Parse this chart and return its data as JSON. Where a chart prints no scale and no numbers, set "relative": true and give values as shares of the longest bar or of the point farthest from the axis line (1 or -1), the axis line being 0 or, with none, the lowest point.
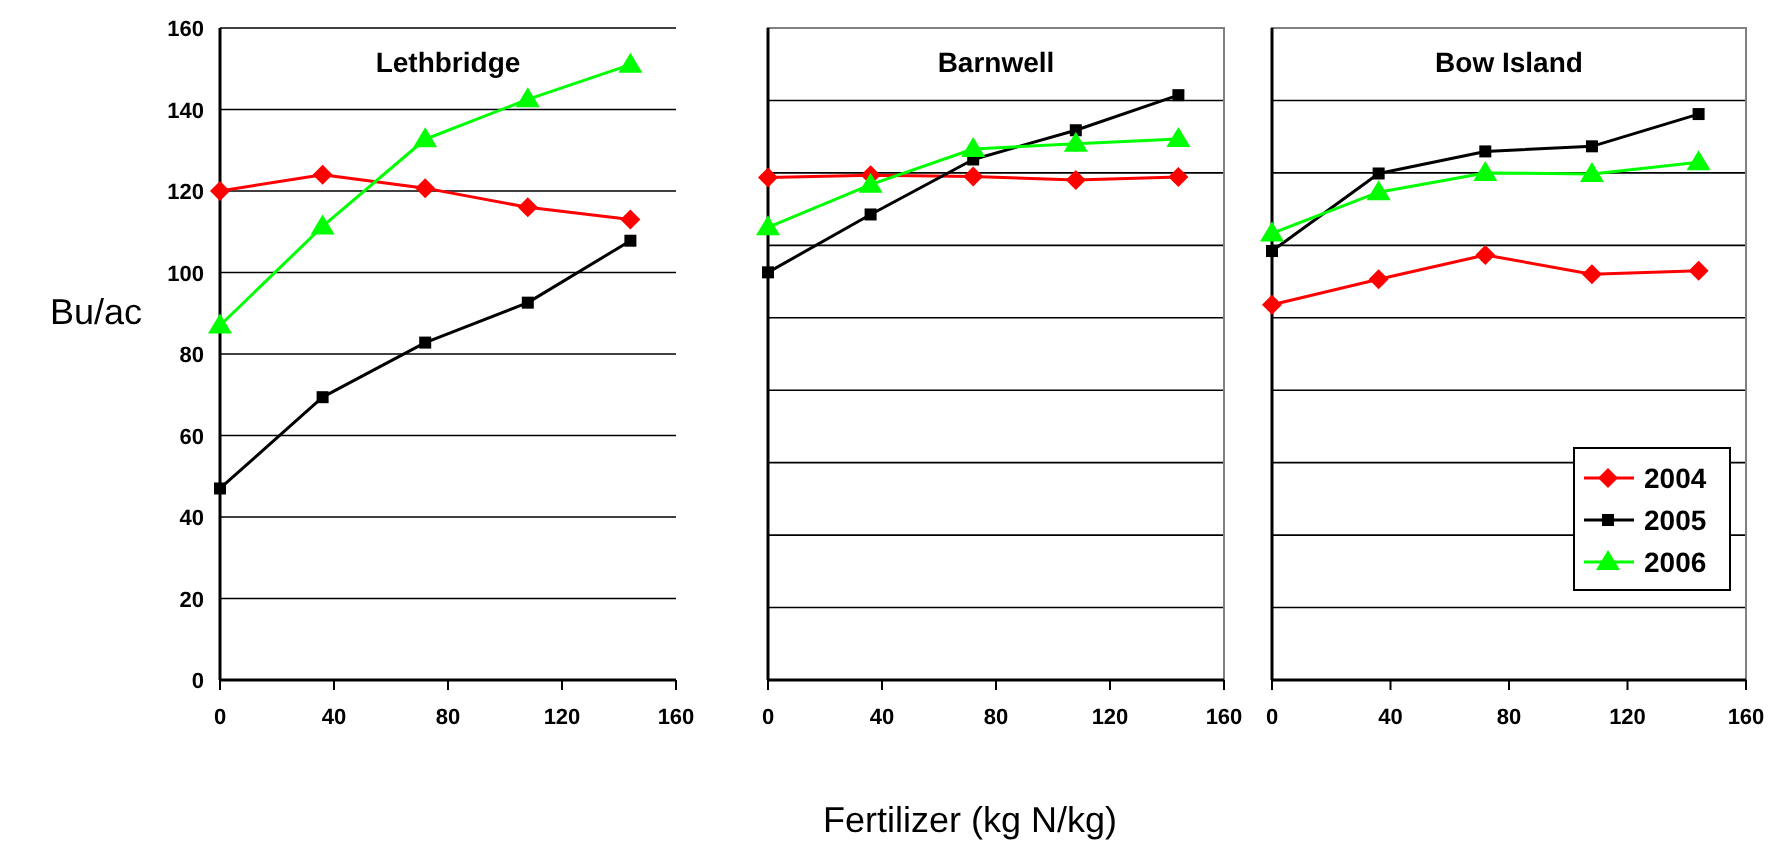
{
  "chart_data": [
    {
      "type": "line",
      "title": "Lethbridge",
      "ylabel": "Bu/ac",
      "x": [
        0,
        36,
        72,
        108,
        144
      ],
      "xlim": [
        0,
        160
      ],
      "xticks": [
        0,
        40,
        80,
        120,
        160
      ],
      "ylim": [
        0,
        160
      ],
      "yticks": [
        0,
        20,
        40,
        60,
        80,
        100,
        120,
        140,
        160
      ],
      "grid": "y",
      "legend": false,
      "series": [
        {
          "color": "#ff0000",
          "marker": "diamond",
          "values": [
            120,
            124,
            120.7,
            116,
            113
          ]
        },
        {
          "color": "#000000",
          "marker": "square",
          "values": [
            47,
            69.4,
            82.8,
            92.6,
            107.8
          ]
        },
        {
          "color": "#00ff00",
          "marker": "triangle",
          "values": [
            87,
            111.3,
            132.7,
            142.5,
            151
          ]
        }
      ]
    },
    {
      "type": "line",
      "title": "Barnwell",
      "xlabel": "Fertilizer (kg N/kg)",
      "relative": true,
      "x": [
        0,
        36,
        72,
        108,
        144
      ],
      "xlim": [
        0,
        160
      ],
      "xticks": [
        0,
        40,
        80,
        120,
        160
      ],
      "grid": "y",
      "legend": false,
      "series": [
        {
          "color": "#ff0000",
          "marker": "diamond",
          "values": [
            0.859,
            0.863,
            0.861,
            0.855,
            0.86
          ]
        },
        {
          "color": "#000000",
          "marker": "square",
          "values": [
            0.697,
            0.796,
            0.89,
            0.94,
            1
          ]
        },
        {
          "color": "#00ff00",
          "marker": "triangle",
          "values": [
            0.774,
            0.847,
            0.908,
            0.917,
            0.925
          ]
        }
      ]
    },
    {
      "type": "line",
      "title": "Bow Island",
      "relative": true,
      "x": [
        0,
        36,
        72,
        108,
        144
      ],
      "xlim": [
        0,
        160
      ],
      "xticks": [
        0,
        40,
        80,
        120,
        160
      ],
      "grid": "y",
      "legend": "bottom right",
      "series": [
        {
          "name": "2004",
          "color": "#ff0000",
          "marker": "diamond",
          "values": [
            0.663,
            0.708,
            0.751,
            0.717,
            0.723
          ]
        },
        {
          "name": "2005",
          "color": "#000000",
          "marker": "square",
          "values": [
            0.758,
            0.895,
            0.934,
            0.943,
            1
          ]
        },
        {
          "name": "2006",
          "color": "#00ff00",
          "marker": "triangle",
          "values": [
            0.789,
            0.862,
            0.896,
            0.894,
            0.915
          ]
        }
      ]
    }
  ]
}
